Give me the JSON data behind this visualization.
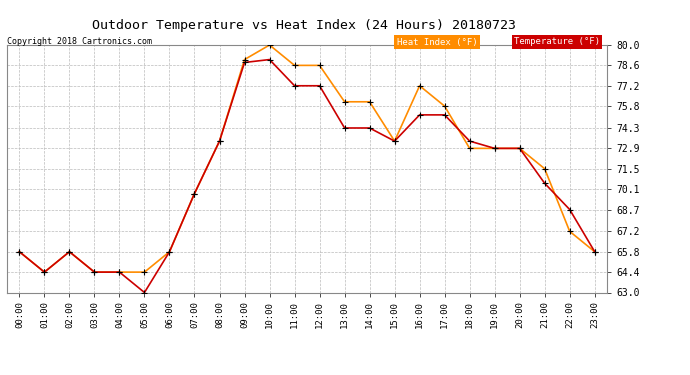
{
  "title": "Outdoor Temperature vs Heat Index (24 Hours) 20180723",
  "copyright": "Copyright 2018 Cartronics.com",
  "hours": [
    "00:00",
    "01:00",
    "02:00",
    "03:00",
    "04:00",
    "05:00",
    "06:00",
    "07:00",
    "08:00",
    "09:00",
    "10:00",
    "11:00",
    "12:00",
    "13:00",
    "14:00",
    "15:00",
    "16:00",
    "17:00",
    "18:00",
    "19:00",
    "20:00",
    "21:00",
    "22:00",
    "23:00"
  ],
  "temperature": [
    65.8,
    64.4,
    65.8,
    64.4,
    64.4,
    63.0,
    65.8,
    69.8,
    73.4,
    78.8,
    79.0,
    77.2,
    77.2,
    74.3,
    74.3,
    73.4,
    75.2,
    75.2,
    73.4,
    72.9,
    72.9,
    70.5,
    68.7,
    65.8
  ],
  "heat_index": [
    65.8,
    64.4,
    65.8,
    64.4,
    64.4,
    64.4,
    65.8,
    69.8,
    73.4,
    79.0,
    80.0,
    78.6,
    78.6,
    76.1,
    76.1,
    73.4,
    77.2,
    75.8,
    72.9,
    72.9,
    72.9,
    71.5,
    67.2,
    65.8
  ],
  "temp_color": "#cc0000",
  "heat_index_color": "#ff8c00",
  "ylim": [
    63.0,
    80.0
  ],
  "yticks": [
    63.0,
    64.4,
    65.8,
    67.2,
    68.7,
    70.1,
    71.5,
    72.9,
    74.3,
    75.8,
    77.2,
    78.6,
    80.0
  ],
  "bg_color": "#ffffff",
  "grid_color": "#bbbbbb",
  "legend_heat_bg": "#ff8c00",
  "legend_temp_bg": "#cc0000",
  "legend_text_color": "#ffffff"
}
